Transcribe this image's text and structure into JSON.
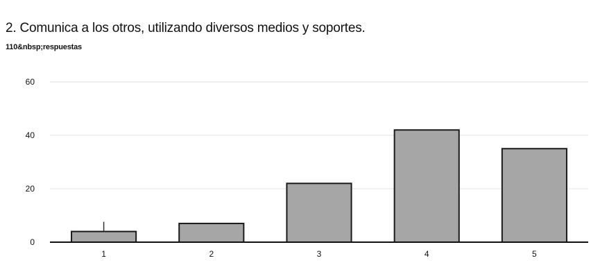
{
  "page": {
    "title": "2. Comunica a los otros, utilizando diversos medios y soportes.",
    "subtitle": "110&nbsp;respuestas"
  },
  "colors": {
    "bar_fill": "#a6a6a6",
    "bar_stroke": "#1a1a1a",
    "grid": "#e2e2e2"
  },
  "chart_data": {
    "type": "bar",
    "title": "2. Comunica a los otros, utilizando diversos medios y soportes.",
    "subtitle": "110&nbsp;respuestas",
    "categories": [
      "1",
      "2",
      "3",
      "4",
      "5"
    ],
    "values": [
      4,
      7,
      22,
      42,
      35
    ],
    "ylim": [
      0,
      60
    ],
    "yticks": [
      0,
      20,
      40,
      60
    ],
    "xlabel": "",
    "ylabel": "",
    "grid": true,
    "legend": "none"
  }
}
